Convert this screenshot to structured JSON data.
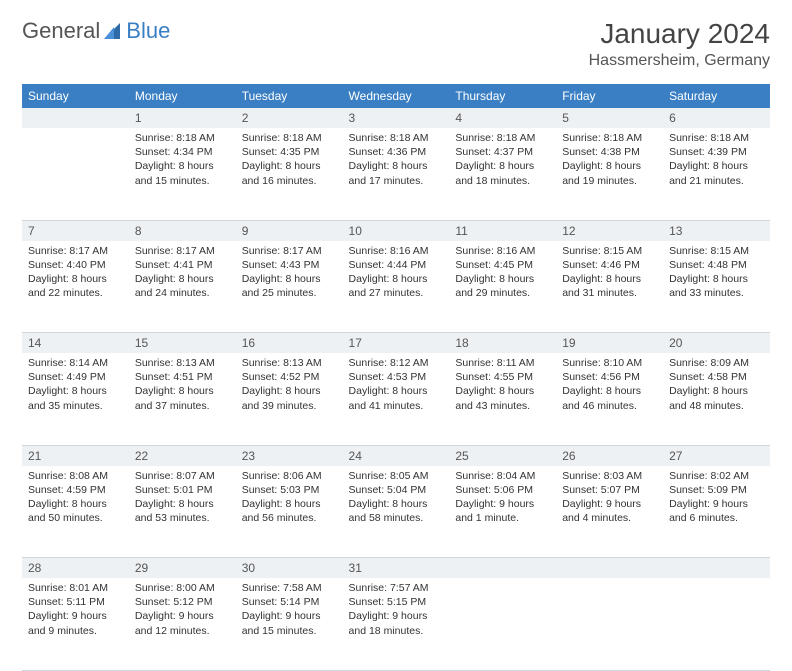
{
  "logo": {
    "text1": "General",
    "text2": "Blue"
  },
  "title": "January 2024",
  "location": "Hassmersheim, Germany",
  "colors": {
    "header_bg": "#3a7fc4",
    "header_text": "#ffffff",
    "daynum_bg": "#eef1f4",
    "border": "#cfd8e0",
    "title_color": "#444444",
    "text_color": "#333333"
  },
  "weekdays": [
    "Sunday",
    "Monday",
    "Tuesday",
    "Wednesday",
    "Thursday",
    "Friday",
    "Saturday"
  ],
  "weeks": [
    [
      null,
      {
        "n": "1",
        "sr": "Sunrise: 8:18 AM",
        "ss": "Sunset: 4:34 PM",
        "dl": "Daylight: 8 hours and 15 minutes."
      },
      {
        "n": "2",
        "sr": "Sunrise: 8:18 AM",
        "ss": "Sunset: 4:35 PM",
        "dl": "Daylight: 8 hours and 16 minutes."
      },
      {
        "n": "3",
        "sr": "Sunrise: 8:18 AM",
        "ss": "Sunset: 4:36 PM",
        "dl": "Daylight: 8 hours and 17 minutes."
      },
      {
        "n": "4",
        "sr": "Sunrise: 8:18 AM",
        "ss": "Sunset: 4:37 PM",
        "dl": "Daylight: 8 hours and 18 minutes."
      },
      {
        "n": "5",
        "sr": "Sunrise: 8:18 AM",
        "ss": "Sunset: 4:38 PM",
        "dl": "Daylight: 8 hours and 19 minutes."
      },
      {
        "n": "6",
        "sr": "Sunrise: 8:18 AM",
        "ss": "Sunset: 4:39 PM",
        "dl": "Daylight: 8 hours and 21 minutes."
      }
    ],
    [
      {
        "n": "7",
        "sr": "Sunrise: 8:17 AM",
        "ss": "Sunset: 4:40 PM",
        "dl": "Daylight: 8 hours and 22 minutes."
      },
      {
        "n": "8",
        "sr": "Sunrise: 8:17 AM",
        "ss": "Sunset: 4:41 PM",
        "dl": "Daylight: 8 hours and 24 minutes."
      },
      {
        "n": "9",
        "sr": "Sunrise: 8:17 AM",
        "ss": "Sunset: 4:43 PM",
        "dl": "Daylight: 8 hours and 25 minutes."
      },
      {
        "n": "10",
        "sr": "Sunrise: 8:16 AM",
        "ss": "Sunset: 4:44 PM",
        "dl": "Daylight: 8 hours and 27 minutes."
      },
      {
        "n": "11",
        "sr": "Sunrise: 8:16 AM",
        "ss": "Sunset: 4:45 PM",
        "dl": "Daylight: 8 hours and 29 minutes."
      },
      {
        "n": "12",
        "sr": "Sunrise: 8:15 AM",
        "ss": "Sunset: 4:46 PM",
        "dl": "Daylight: 8 hours and 31 minutes."
      },
      {
        "n": "13",
        "sr": "Sunrise: 8:15 AM",
        "ss": "Sunset: 4:48 PM",
        "dl": "Daylight: 8 hours and 33 minutes."
      }
    ],
    [
      {
        "n": "14",
        "sr": "Sunrise: 8:14 AM",
        "ss": "Sunset: 4:49 PM",
        "dl": "Daylight: 8 hours and 35 minutes."
      },
      {
        "n": "15",
        "sr": "Sunrise: 8:13 AM",
        "ss": "Sunset: 4:51 PM",
        "dl": "Daylight: 8 hours and 37 minutes."
      },
      {
        "n": "16",
        "sr": "Sunrise: 8:13 AM",
        "ss": "Sunset: 4:52 PM",
        "dl": "Daylight: 8 hours and 39 minutes."
      },
      {
        "n": "17",
        "sr": "Sunrise: 8:12 AM",
        "ss": "Sunset: 4:53 PM",
        "dl": "Daylight: 8 hours and 41 minutes."
      },
      {
        "n": "18",
        "sr": "Sunrise: 8:11 AM",
        "ss": "Sunset: 4:55 PM",
        "dl": "Daylight: 8 hours and 43 minutes."
      },
      {
        "n": "19",
        "sr": "Sunrise: 8:10 AM",
        "ss": "Sunset: 4:56 PM",
        "dl": "Daylight: 8 hours and 46 minutes."
      },
      {
        "n": "20",
        "sr": "Sunrise: 8:09 AM",
        "ss": "Sunset: 4:58 PM",
        "dl": "Daylight: 8 hours and 48 minutes."
      }
    ],
    [
      {
        "n": "21",
        "sr": "Sunrise: 8:08 AM",
        "ss": "Sunset: 4:59 PM",
        "dl": "Daylight: 8 hours and 50 minutes."
      },
      {
        "n": "22",
        "sr": "Sunrise: 8:07 AM",
        "ss": "Sunset: 5:01 PM",
        "dl": "Daylight: 8 hours and 53 minutes."
      },
      {
        "n": "23",
        "sr": "Sunrise: 8:06 AM",
        "ss": "Sunset: 5:03 PM",
        "dl": "Daylight: 8 hours and 56 minutes."
      },
      {
        "n": "24",
        "sr": "Sunrise: 8:05 AM",
        "ss": "Sunset: 5:04 PM",
        "dl": "Daylight: 8 hours and 58 minutes."
      },
      {
        "n": "25",
        "sr": "Sunrise: 8:04 AM",
        "ss": "Sunset: 5:06 PM",
        "dl": "Daylight: 9 hours and 1 minute."
      },
      {
        "n": "26",
        "sr": "Sunrise: 8:03 AM",
        "ss": "Sunset: 5:07 PM",
        "dl": "Daylight: 9 hours and 4 minutes."
      },
      {
        "n": "27",
        "sr": "Sunrise: 8:02 AM",
        "ss": "Sunset: 5:09 PM",
        "dl": "Daylight: 9 hours and 6 minutes."
      }
    ],
    [
      {
        "n": "28",
        "sr": "Sunrise: 8:01 AM",
        "ss": "Sunset: 5:11 PM",
        "dl": "Daylight: 9 hours and 9 minutes."
      },
      {
        "n": "29",
        "sr": "Sunrise: 8:00 AM",
        "ss": "Sunset: 5:12 PM",
        "dl": "Daylight: 9 hours and 12 minutes."
      },
      {
        "n": "30",
        "sr": "Sunrise: 7:58 AM",
        "ss": "Sunset: 5:14 PM",
        "dl": "Daylight: 9 hours and 15 minutes."
      },
      {
        "n": "31",
        "sr": "Sunrise: 7:57 AM",
        "ss": "Sunset: 5:15 PM",
        "dl": "Daylight: 9 hours and 18 minutes."
      },
      null,
      null,
      null
    ]
  ]
}
